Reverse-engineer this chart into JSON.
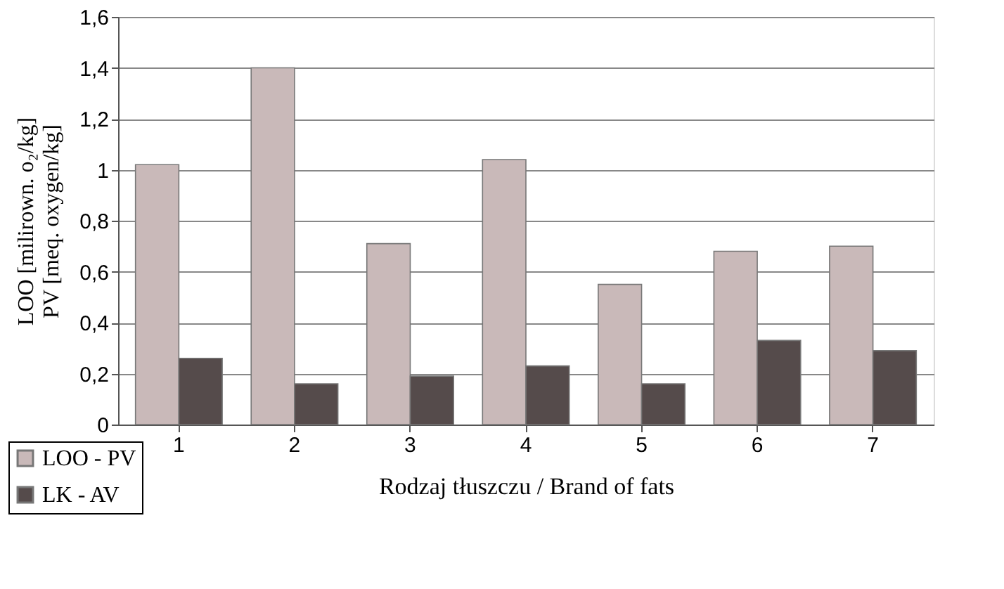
{
  "chart_data": {
    "type": "bar",
    "xlabel": "Rodzaj tłuszczu / Brand of fats",
    "ylabel": "LOO [milirown. o₂/kg]\nPV [meq. oxygen/kg]",
    "categories": [
      "1",
      "2",
      "3",
      "4",
      "5",
      "6",
      "7"
    ],
    "series": [
      {
        "name": "LOO - PV",
        "color": "#c9b9b9",
        "values": [
          1.02,
          1.4,
          0.71,
          1.04,
          0.55,
          0.68,
          0.7
        ]
      },
      {
        "name": "LK - AV",
        "color": "#554b4b",
        "values": [
          0.26,
          0.16,
          0.19,
          0.23,
          0.16,
          0.33,
          0.29
        ]
      }
    ],
    "ylim": [
      0,
      1.6
    ],
    "yticks": [
      0,
      {
        "value": 0.2,
        "label": "0,2"
      },
      {
        "value": 0.4,
        "label": "0,4"
      },
      {
        "value": 0.6,
        "label": "0,6"
      },
      {
        "value": 0.8,
        "label": "0,8"
      },
      1,
      {
        "value": 1.2,
        "label": "1,2"
      },
      {
        "value": 1.4,
        "label": "1,4"
      },
      {
        "value": 1.6,
        "label": "1,6"
      }
    ],
    "grid": "y",
    "legend": "bottom left"
  }
}
